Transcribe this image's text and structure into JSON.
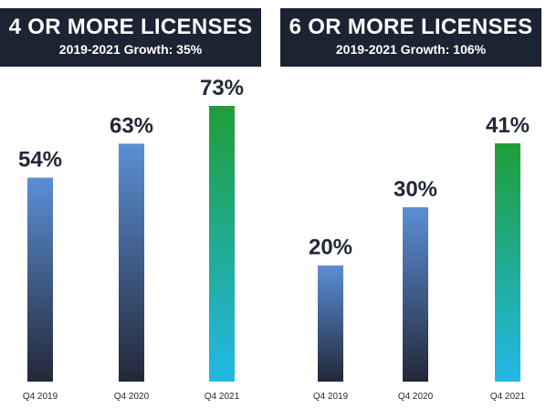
{
  "chart_data": [
    {
      "type": "bar",
      "title": "4 OR MORE LICENSES",
      "subtitle": "2019-2021 Growth: 35%",
      "categories": [
        "Q4 2019",
        "Q4 2020",
        "Q4 2021"
      ],
      "values": [
        54,
        63,
        73
      ],
      "value_labels": [
        "54%",
        "63%",
        "73%"
      ],
      "ylim": [
        0,
        100
      ],
      "colors": {
        "blue_top": "#5b8fd6",
        "dark_bottom": "#232838",
        "green_top": "#1f9e38",
        "cyan_bottom": "#22b8e8"
      }
    },
    {
      "type": "bar",
      "title": "6 OR MORE LICENSES",
      "subtitle": "2019-2021 Growth: 106%",
      "categories": [
        "Q4 2019",
        "Q4 2020",
        "Q4 2021"
      ],
      "values": [
        20,
        30,
        41
      ],
      "value_labels": [
        "20%",
        "30%",
        "41%"
      ],
      "ylim": [
        0,
        50
      ],
      "colors": {
        "blue_top": "#5b8fd6",
        "dark_bottom": "#232838",
        "green_top": "#1f9e38",
        "cyan_bottom": "#22b8e8"
      }
    }
  ]
}
